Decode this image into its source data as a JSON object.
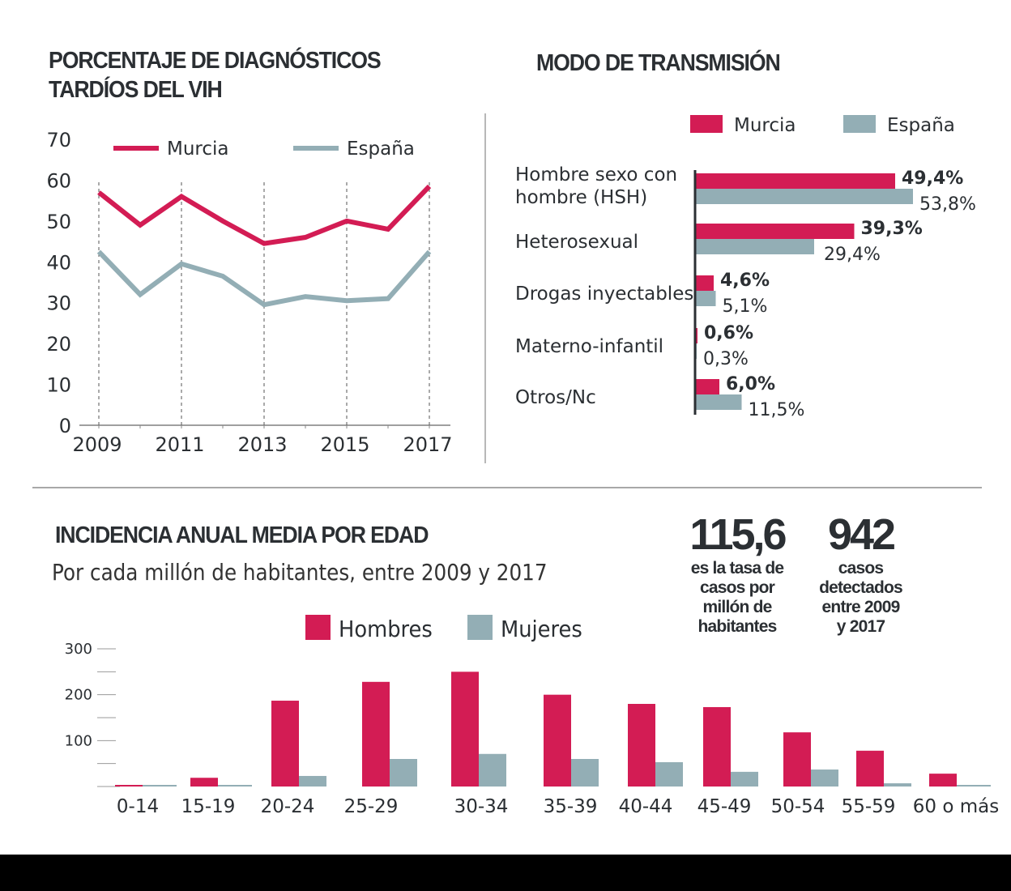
{
  "colors": {
    "primary": "#D31C54",
    "secondary": "#93AEB5",
    "text": "#2b2f33"
  },
  "chart_data": [
    {
      "type": "line",
      "title": "PORCENTAJE DE DIAGNÓSTICOS TARDÍOS DEL VIH",
      "title_lines": [
        "PORCENTAJE DE DIAGNÓSTICOS",
        "TARDÍOS DEL VIH"
      ],
      "x": [
        2009,
        2010,
        2011,
        2012,
        2013,
        2014,
        2015,
        2016,
        2017
      ],
      "xticks": [
        "2009",
        "2011",
        "2013",
        "2015",
        "2017"
      ],
      "yticks": [
        "0",
        "10",
        "20",
        "30",
        "40",
        "50",
        "60",
        "70"
      ],
      "ylim": [
        0,
        70
      ],
      "xlabel": "",
      "ylabel": "",
      "legend": "top",
      "series": [
        {
          "name": "Murcia",
          "color": "#D31C54",
          "values": [
            57,
            49,
            56,
            50,
            44.5,
            46,
            50,
            48,
            58.5
          ]
        },
        {
          "name": "España",
          "color": "#93AEB5",
          "values": [
            42.5,
            32,
            39.5,
            36.5,
            29.5,
            31.5,
            30.5,
            31,
            42.5
          ]
        }
      ]
    },
    {
      "type": "bar",
      "orientation": "horizontal",
      "title": "MODO DE TRANSMISIÓN",
      "categories": [
        "Hombre sexo con hombre (HSH)",
        "Heterosexual",
        "Drogas inyectables",
        "Materno-infantil",
        "Otros/Nc"
      ],
      "category_lines": [
        [
          "Hombre sexo con",
          "hombre (HSH)"
        ],
        [
          "Heterosexual"
        ],
        [
          "Drogas inyectables"
        ],
        [
          "Materno-infantil"
        ],
        [
          "Otros/Nc"
        ]
      ],
      "legend": "top",
      "series": [
        {
          "name": "Murcia",
          "color": "#D31C54",
          "values": [
            49.4,
            39.3,
            4.6,
            0.6,
            6.0
          ],
          "labels": [
            "49,4%",
            "39,3%",
            "4,6%",
            "0,6%",
            "6,0%"
          ]
        },
        {
          "name": "España",
          "color": "#93AEB5",
          "values": [
            53.8,
            29.4,
            5.1,
            0.3,
            11.5
          ],
          "labels": [
            "53,8%",
            "29,4%",
            "5,1%",
            "0,3%",
            "11,5%"
          ]
        }
      ]
    },
    {
      "type": "bar",
      "title": "INCIDENCIA ANUAL MEDIA POR EDAD",
      "subtitle": "Por cada millón de habitantes, entre 2009 y 2017",
      "categories": [
        "0-14",
        "15-19",
        "20-24",
        "25-29",
        "30-34",
        "35-39",
        "40-44",
        "45-49",
        "50-54",
        "55-59",
        "60 o más"
      ],
      "ylim": [
        0,
        300
      ],
      "yticks": [
        "100",
        "200",
        "300"
      ],
      "legend": "top",
      "series": [
        {
          "name": "Hombres",
          "color": "#D31C54",
          "values": [
            3,
            19,
            187,
            228,
            250,
            200,
            180,
            173,
            118,
            78,
            28
          ]
        },
        {
          "name": "Mujeres",
          "color": "#93AEB5",
          "values": [
            1,
            1,
            23,
            60,
            71,
            60,
            53,
            32,
            37,
            7,
            1
          ]
        }
      ]
    }
  ],
  "stats": [
    {
      "value": "115,6",
      "caption_lines": [
        "es la tasa de",
        "casos por",
        "millón de",
        "habitantes"
      ]
    },
    {
      "value": "942",
      "caption_lines": [
        "casos",
        "detectados",
        "entre 2009",
        "y 2017"
      ]
    }
  ]
}
